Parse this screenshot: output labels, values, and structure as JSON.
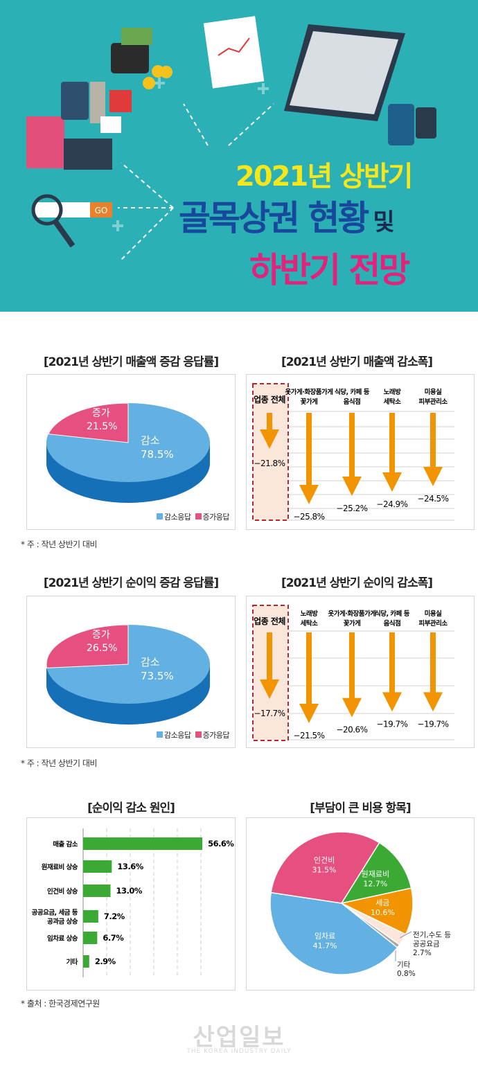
{
  "header": {
    "title_line1": "2021년 상반기",
    "title_line2": "골목상권 현황",
    "title_line2_suffix": "및",
    "title_line3": "하반기 전망",
    "search_button": "GO",
    "colors": {
      "background": "#2bb0b5",
      "line1": "#f6e61c",
      "line2": "#17489b",
      "line3": "#e2237c"
    }
  },
  "chart_data": [
    {
      "type": "pie",
      "title": "[2021년 상반기 매출액 증감 응답률]",
      "slices": [
        {
          "name": "감소",
          "value": 78.5,
          "label": "78.5%",
          "color": "#63b0e2"
        },
        {
          "name": "증가",
          "value": 21.5,
          "label": "21.5%",
          "color": "#e6507f"
        }
      ],
      "legend": [
        "감소응답",
        "증가응답"
      ],
      "legend_placement": "bottom-right",
      "style": "3d",
      "note": "* 주 : 작년 상반기 대비"
    },
    {
      "type": "bar",
      "orientation": "down-arrows",
      "title": "[2021년 상반기 매출액 감소폭]",
      "categories": [
        [
          "업종 전체"
        ],
        [
          "옷가게·화장품가게",
          "꽃가게"
        ],
        [
          "식당, 카페 등",
          "음식점"
        ],
        [
          "노래방",
          "세탁소"
        ],
        [
          "미용실",
          "피부관리소"
        ]
      ],
      "values": [
        -21.8,
        -25.8,
        -25.2,
        -24.9,
        -24.5
      ],
      "labels": [
        "−21.8%",
        "−25.8%",
        "−25.2%",
        "−24.9%",
        "−24.5%"
      ],
      "highlight": "업종 전체",
      "color": "#f29400"
    },
    {
      "type": "pie",
      "title": "[2021년 상반기 순이익 증감 응답률]",
      "slices": [
        {
          "name": "감소",
          "value": 73.5,
          "label": "73.5%",
          "color": "#63b0e2"
        },
        {
          "name": "증가",
          "value": 26.5,
          "label": "26.5%",
          "color": "#e6507f"
        }
      ],
      "legend": [
        "감소응답",
        "증가응답"
      ],
      "legend_placement": "bottom-right",
      "style": "3d",
      "note": "* 주 : 작년 상반기 대비"
    },
    {
      "type": "bar",
      "orientation": "down-arrows",
      "title": "[2021년 상반기 순이익 감소폭]",
      "categories": [
        [
          "업종 전체"
        ],
        [
          "노래방",
          "세탁소"
        ],
        [
          "옷가게·화장품가게",
          "꽃가게"
        ],
        [
          "식당, 카페 등",
          "음식점"
        ],
        [
          "미용실",
          "피부관리소"
        ]
      ],
      "values": [
        -17.7,
        -21.5,
        -20.6,
        -19.7,
        -19.7
      ],
      "labels": [
        "−17.7%",
        "−21.5%",
        "−20.6%",
        "−19.7%",
        "−19.7%"
      ],
      "highlight": "업종 전체",
      "color": "#f29400"
    },
    {
      "type": "bar",
      "orientation": "horizontal",
      "title": "[순이익 감소 원인]",
      "categories": [
        [
          "매출 감소"
        ],
        [
          "원재료비 상승"
        ],
        [
          "인건비 상승"
        ],
        [
          "공공요금, 세금 등",
          "공과금 상승"
        ],
        [
          "임차료 상승"
        ],
        [
          "기타"
        ]
      ],
      "values": [
        56.6,
        13.6,
        13.0,
        7.2,
        6.7,
        2.9
      ],
      "labels": [
        "56.6%",
        "13.6%",
        "13.0%",
        "7.2%",
        "6.7%",
        "2.9%"
      ],
      "grid": true,
      "color": "#3aaa35",
      "note": "* 출처 : 한국경제연구원"
    },
    {
      "type": "pie",
      "title": "[부담이 큰 비용 항목]",
      "slices": [
        {
          "name": [
            "원재료비"
          ],
          "value": 12.7,
          "label": "12.7%",
          "color": "#3aaa35"
        },
        {
          "name": [
            "세금"
          ],
          "value": 10.6,
          "label": "10.6%",
          "color": "#f29400"
        },
        {
          "name": [
            "전기,수도 등",
            "공공요금"
          ],
          "value": 2.7,
          "label": "2.7%",
          "color": "#fbe6dc"
        },
        {
          "name": [
            "기타"
          ],
          "value": 0.8,
          "label": "0.8%",
          "color": "#a9a9a9"
        },
        {
          "name": [
            "임차료"
          ],
          "value": 41.7,
          "label": "41.7%",
          "color": "#63b0e2"
        },
        {
          "name": [
            "인건비"
          ],
          "value": 31.5,
          "label": "31.5%",
          "color": "#e6507f"
        }
      ]
    }
  ],
  "watermark": {
    "name": "산업일보",
    "sub": "THE KOREA INDUSTRY DAILY"
  }
}
